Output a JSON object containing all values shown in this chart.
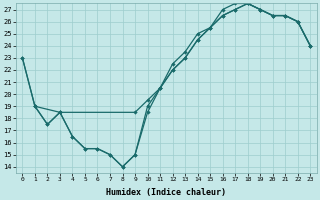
{
  "title": "",
  "xlabel": "Humidex (Indice chaleur)",
  "xlim": [
    -0.5,
    23.5
  ],
  "ylim": [
    13.5,
    27.5
  ],
  "yticks": [
    14,
    15,
    16,
    17,
    18,
    19,
    20,
    21,
    22,
    23,
    24,
    25,
    26,
    27
  ],
  "xticks": [
    0,
    1,
    2,
    3,
    4,
    5,
    6,
    7,
    8,
    9,
    10,
    11,
    12,
    13,
    14,
    15,
    16,
    17,
    18,
    19,
    20,
    21,
    22,
    23
  ],
  "background_color": "#c5e8e8",
  "grid_color": "#9ecece",
  "line_color": "#1a6b6b",
  "line1_x": [
    0,
    1,
    2,
    3,
    4,
    5,
    6,
    7,
    8,
    9,
    10,
    11,
    12,
    13,
    14,
    15,
    16,
    17,
    18,
    19,
    20,
    21,
    22,
    23
  ],
  "line1_y": [
    23,
    19,
    17.5,
    18.5,
    16.5,
    15.5,
    15.5,
    15,
    14,
    15,
    18.5,
    20.5,
    22,
    23,
    24.5,
    25.5,
    26.5,
    27,
    27.5,
    27,
    26.5,
    26.5,
    26,
    24
  ],
  "line2_x": [
    0,
    1,
    3,
    9,
    10,
    11,
    12,
    13,
    14,
    15,
    16,
    17,
    18,
    19,
    20,
    21,
    22,
    23
  ],
  "line2_y": [
    23,
    19,
    18.5,
    18.5,
    19.5,
    20.5,
    22.5,
    23.5,
    25,
    25.5,
    27,
    27.5,
    27.5,
    27,
    26.5,
    26.5,
    26,
    24
  ],
  "line3_x": [
    1,
    2,
    3,
    4,
    5,
    6,
    7,
    8,
    9,
    10,
    11,
    12,
    13,
    14,
    15,
    16,
    17,
    18,
    19,
    20,
    21,
    22,
    23
  ],
  "line3_y": [
    19,
    17.5,
    18.5,
    16.5,
    15.5,
    15.5,
    15,
    14,
    15,
    19,
    20.5,
    22,
    23,
    24.5,
    25.5,
    26.5,
    27,
    27.5,
    27,
    26.5,
    26.5,
    26,
    24
  ]
}
